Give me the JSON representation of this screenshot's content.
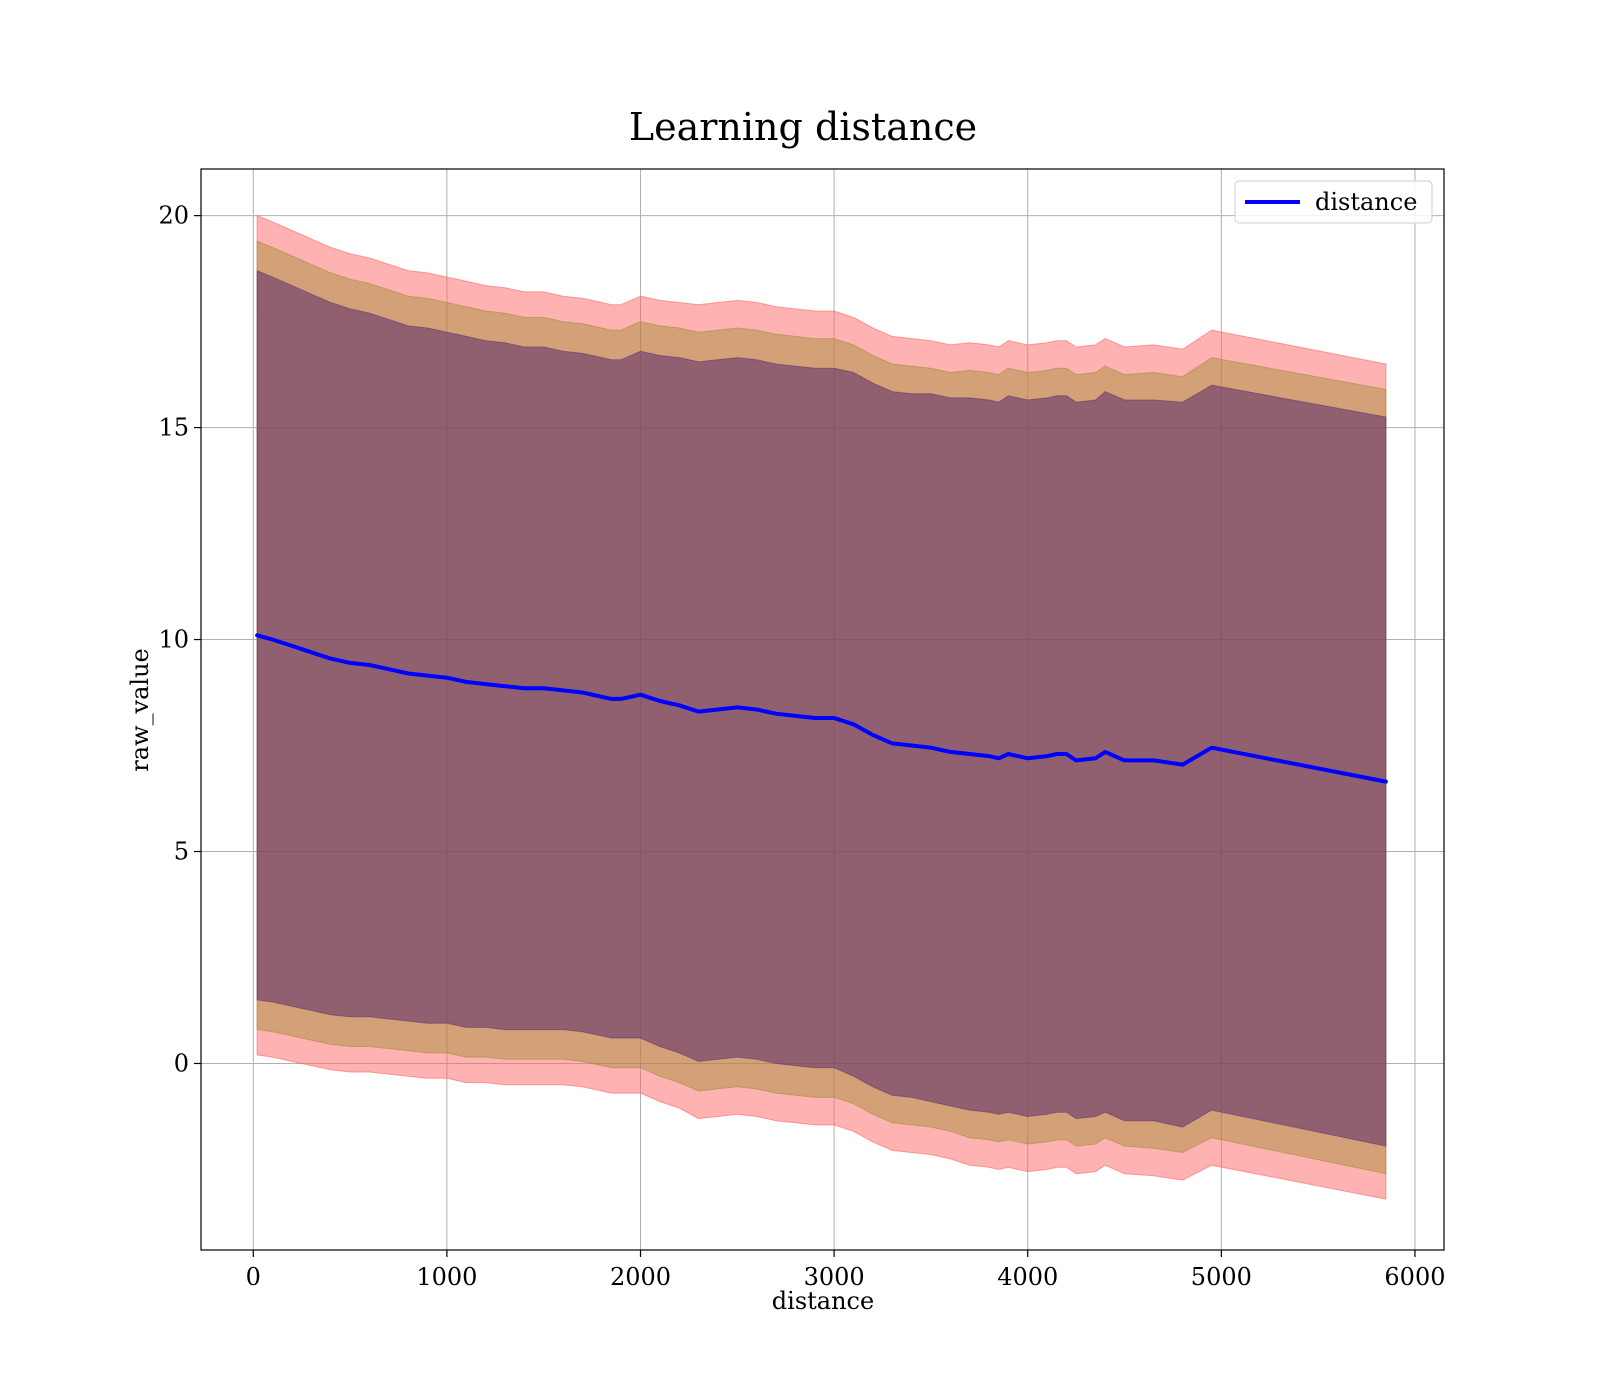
{
  "chart_data": {
    "type": "line",
    "title": "Learning distance",
    "xlabel": "distance",
    "ylabel": "raw_value",
    "xlim": [
      -270,
      6150
    ],
    "ylim": [
      -4.4,
      21.1
    ],
    "xticks": [
      0,
      1000,
      2000,
      3000,
      4000,
      5000,
      6000
    ],
    "yticks": [
      0,
      5,
      10,
      15,
      20
    ],
    "xtick_labels": [
      "0",
      "1000",
      "2000",
      "3000",
      "4000",
      "5000",
      "6000"
    ],
    "ytick_labels": [
      "0",
      "5",
      "10",
      "15",
      "20"
    ],
    "grid": true,
    "legend": {
      "position": "top-right",
      "entries": [
        "distance"
      ]
    },
    "colors": {
      "line": "#0000ff",
      "band_outer": "#ff6666",
      "band_mid": "#9e8a30",
      "band_inner": "#5a2b6b"
    },
    "series": [
      {
        "name": "distance",
        "x": [
          20,
          100,
          200,
          300,
          400,
          500,
          600,
          700,
          800,
          900,
          1000,
          1100,
          1200,
          1300,
          1400,
          1500,
          1600,
          1700,
          1800,
          1850,
          1900,
          2000,
          2100,
          2200,
          2300,
          2400,
          2500,
          2600,
          2700,
          2800,
          2900,
          3000,
          3100,
          3200,
          3300,
          3400,
          3500,
          3600,
          3700,
          3800,
          3850,
          3900,
          4000,
          4100,
          4150,
          4200,
          4250,
          4350,
          4400,
          4500,
          4650,
          4800,
          4950,
          5850
        ],
        "y": [
          10.1,
          10.0,
          9.85,
          9.7,
          9.55,
          9.45,
          9.4,
          9.3,
          9.2,
          9.15,
          9.1,
          9.0,
          8.95,
          8.9,
          8.85,
          8.85,
          8.8,
          8.75,
          8.65,
          8.6,
          8.6,
          8.7,
          8.55,
          8.45,
          8.3,
          8.35,
          8.4,
          8.35,
          8.25,
          8.2,
          8.15,
          8.15,
          8.0,
          7.75,
          7.55,
          7.5,
          7.45,
          7.35,
          7.3,
          7.25,
          7.2,
          7.3,
          7.2,
          7.25,
          7.3,
          7.3,
          7.15,
          7.2,
          7.35,
          7.15,
          7.15,
          7.05,
          7.45,
          6.65
        ],
        "band_outer_half_width": [
          9.9,
          9.85,
          9.8,
          9.75,
          9.7,
          9.65,
          9.6,
          9.55,
          9.5,
          9.5,
          9.45,
          9.45,
          9.4,
          9.4,
          9.35,
          9.35,
          9.3,
          9.3,
          9.3,
          9.3,
          9.3,
          9.4,
          9.45,
          9.5,
          9.6,
          9.6,
          9.6,
          9.6,
          9.6,
          9.6,
          9.6,
          9.6,
          9.6,
          9.6,
          9.6,
          9.6,
          9.6,
          9.6,
          9.7,
          9.7,
          9.7,
          9.75,
          9.75,
          9.75,
          9.75,
          9.75,
          9.75,
          9.75,
          9.75,
          9.75,
          9.8,
          9.8,
          9.85,
          9.85
        ],
        "band_mid_half_width": [
          9.3,
          9.25,
          9.2,
          9.15,
          9.1,
          9.05,
          9.0,
          8.95,
          8.9,
          8.9,
          8.85,
          8.85,
          8.8,
          8.8,
          8.75,
          8.75,
          8.7,
          8.7,
          8.7,
          8.7,
          8.7,
          8.8,
          8.85,
          8.9,
          8.95,
          8.95,
          8.95,
          8.95,
          8.95,
          8.95,
          8.95,
          8.95,
          8.95,
          8.95,
          8.95,
          8.95,
          8.95,
          8.95,
          9.05,
          9.05,
          9.05,
          9.1,
          9.1,
          9.1,
          9.1,
          9.1,
          9.1,
          9.1,
          9.1,
          9.1,
          9.15,
          9.15,
          9.2,
          9.25
        ],
        "band_inner_half_width": [
          8.6,
          8.55,
          8.5,
          8.45,
          8.4,
          8.35,
          8.3,
          8.25,
          8.2,
          8.2,
          8.15,
          8.15,
          8.1,
          8.1,
          8.05,
          8.05,
          8.0,
          8.0,
          8.0,
          8.0,
          8.0,
          8.1,
          8.15,
          8.2,
          8.25,
          8.25,
          8.25,
          8.25,
          8.25,
          8.25,
          8.25,
          8.25,
          8.3,
          8.3,
          8.3,
          8.3,
          8.35,
          8.35,
          8.4,
          8.4,
          8.4,
          8.45,
          8.45,
          8.45,
          8.45,
          8.45,
          8.45,
          8.45,
          8.5,
          8.5,
          8.5,
          8.55,
          8.55,
          8.6
        ]
      }
    ]
  }
}
